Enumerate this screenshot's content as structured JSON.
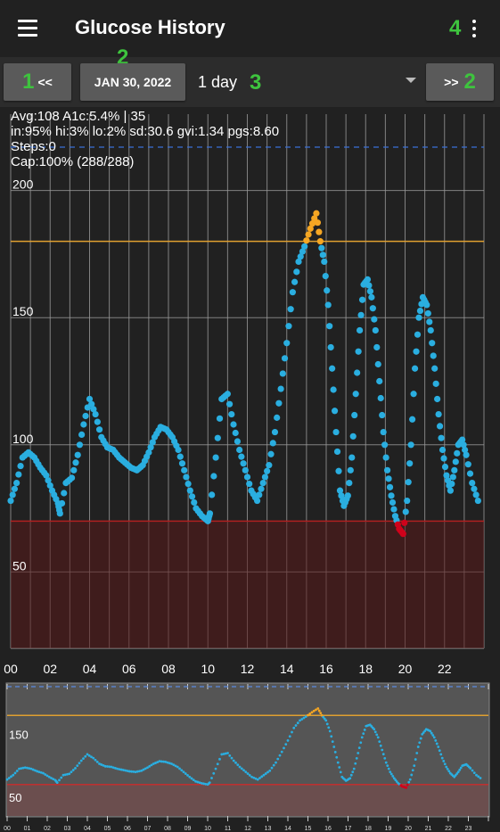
{
  "header": {
    "title": "Glucose History"
  },
  "annotations": [
    "1",
    "2",
    "3",
    "4",
    "2"
  ],
  "controls": {
    "prev_label": "<<",
    "date_label": "JAN 30, 2022",
    "range_label": "1 day",
    "next_label": ">>"
  },
  "stats": {
    "line1": "Avg:108 A1c:5.4% | 35",
    "line2": "in:95% hi:3% lo:2% sd:30.6 gvi:1.34 pgs:8.60",
    "line3": "Steps:0",
    "line4": "Cap:100% (288/288)"
  },
  "colors": {
    "in_range": "#2aaee0",
    "high": "#f5a623",
    "low": "#d0021b",
    "high_line": "#e0a030",
    "low_zone": "#3d1c1c",
    "low_line": "#b02020"
  },
  "chart_data": [
    {
      "type": "scatter",
      "name": "main-glucose-chart",
      "x_unit": "hour",
      "xlim": [
        0,
        24
      ],
      "ylim": [
        20,
        230
      ],
      "y_ticks": [
        50,
        100,
        150,
        200
      ],
      "x_tick_labels": [
        "00",
        "02",
        "04",
        "06",
        "08",
        "10",
        "12",
        "14",
        "16",
        "18",
        "20",
        "22"
      ],
      "high_threshold": 180,
      "low_threshold": 70,
      "grid": true,
      "points": [
        [
          0,
          78
        ],
        [
          0.3,
          85
        ],
        [
          0.6,
          95
        ],
        [
          0.9,
          97
        ],
        [
          1.2,
          95
        ],
        [
          1.5,
          91
        ],
        [
          1.8,
          88
        ],
        [
          2.1,
          82
        ],
        [
          2.4,
          77
        ],
        [
          2.5,
          73
        ],
        [
          2.8,
          85
        ],
        [
          3.1,
          87
        ],
        [
          3.4,
          96
        ],
        [
          3.7,
          108
        ],
        [
          4,
          118
        ],
        [
          4.3,
          112
        ],
        [
          4.6,
          103
        ],
        [
          4.9,
          99
        ],
        [
          5.2,
          98
        ],
        [
          5.5,
          95
        ],
        [
          5.8,
          93
        ],
        [
          6.1,
          91
        ],
        [
          6.4,
          90
        ],
        [
          6.7,
          92
        ],
        [
          7,
          97
        ],
        [
          7.3,
          103
        ],
        [
          7.6,
          107
        ],
        [
          7.9,
          106
        ],
        [
          8.2,
          103
        ],
        [
          8.5,
          98
        ],
        [
          8.8,
          90
        ],
        [
          9.1,
          82
        ],
        [
          9.4,
          75
        ],
        [
          9.7,
          72
        ],
        [
          10,
          70
        ],
        [
          10.1,
          73
        ],
        [
          10.4,
          95
        ],
        [
          10.7,
          118
        ],
        [
          11,
          120
        ],
        [
          11.3,
          108
        ],
        [
          11.6,
          98
        ],
        [
          11.9,
          90
        ],
        [
          12.2,
          82
        ],
        [
          12.5,
          78
        ],
        [
          12.8,
          85
        ],
        [
          13.1,
          92
        ],
        [
          13.4,
          105
        ],
        [
          13.7,
          122
        ],
        [
          14,
          140
        ],
        [
          14.3,
          160
        ],
        [
          14.6,
          172
        ],
        [
          14.9,
          178
        ],
        [
          15.2,
          185
        ],
        [
          15.5,
          191
        ],
        [
          15.7,
          180
        ],
        [
          15.9,
          172
        ],
        [
          16.1,
          155
        ],
        [
          16.3,
          130
        ],
        [
          16.5,
          105
        ],
        [
          16.7,
          82
        ],
        [
          16.9,
          76
        ],
        [
          17.1,
          80
        ],
        [
          17.3,
          95
        ],
        [
          17.5,
          120
        ],
        [
          17.7,
          145
        ],
        [
          17.9,
          163
        ],
        [
          18.1,
          165
        ],
        [
          18.3,
          158
        ],
        [
          18.5,
          145
        ],
        [
          18.7,
          125
        ],
        [
          18.9,
          105
        ],
        [
          19.1,
          90
        ],
        [
          19.3,
          80
        ],
        [
          19.5,
          72
        ],
        [
          19.7,
          67
        ],
        [
          19.9,
          65
        ],
        [
          20.1,
          78
        ],
        [
          20.3,
          100
        ],
        [
          20.5,
          130
        ],
        [
          20.7,
          150
        ],
        [
          20.9,
          158
        ],
        [
          21.1,
          155
        ],
        [
          21.3,
          145
        ],
        [
          21.5,
          130
        ],
        [
          21.7,
          112
        ],
        [
          21.9,
          98
        ],
        [
          22.1,
          88
        ],
        [
          22.3,
          82
        ],
        [
          22.5,
          90
        ],
        [
          22.7,
          100
        ],
        [
          22.9,
          102
        ],
        [
          23.1,
          96
        ],
        [
          23.4,
          85
        ],
        [
          23.7,
          78
        ]
      ]
    },
    {
      "type": "line",
      "name": "overview-chart",
      "x_unit": "hour",
      "xlim": [
        0,
        24
      ],
      "y_ticks": [
        50,
        150
      ],
      "x_tick_labels": [
        "00",
        "01",
        "02",
        "03",
        "04",
        "05",
        "06",
        "07",
        "08",
        "09",
        "10",
        "11",
        "12",
        "13",
        "14",
        "15",
        "16",
        "17",
        "18",
        "19",
        "20",
        "21",
        "22",
        "23"
      ],
      "high_threshold": 180,
      "low_threshold": 70
    }
  ]
}
